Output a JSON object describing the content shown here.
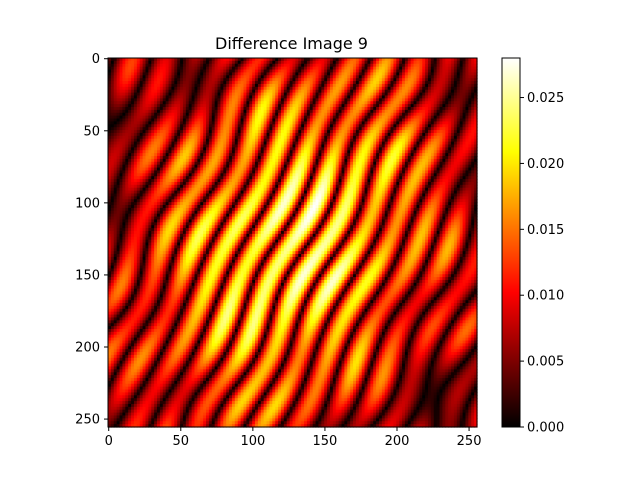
{
  "chart_data": {
    "type": "heatmap",
    "title": "Difference Image 9",
    "xlabel": "",
    "ylabel": "",
    "image_size": [
      256,
      256
    ],
    "xlim": [
      0,
      255
    ],
    "ylim": [
      255,
      0
    ],
    "x_ticks": [
      0,
      50,
      100,
      150,
      200,
      250
    ],
    "y_ticks": [
      0,
      50,
      100,
      150,
      200,
      250
    ],
    "colormap": "hot",
    "colorbar": {
      "range": [
        0.0,
        0.028
      ],
      "ticks": [
        "0.000",
        "0.005",
        "0.010",
        "0.015",
        "0.020",
        "0.025"
      ],
      "tick_values": [
        0.0,
        0.005,
        0.01,
        0.015,
        0.02,
        0.025
      ]
    },
    "pattern": {
      "description_of_values": "diagonal oscillating bands, peak near center",
      "peak_value": 0.028,
      "peak_locations": [
        [
          110,
          125
        ],
        [
          150,
          135
        ]
      ]
    },
    "colors": {
      "hot_stops": [
        "#000000",
        "#ff0000",
        "#ffff00",
        "#ffffff"
      ]
    },
    "grid": false
  }
}
